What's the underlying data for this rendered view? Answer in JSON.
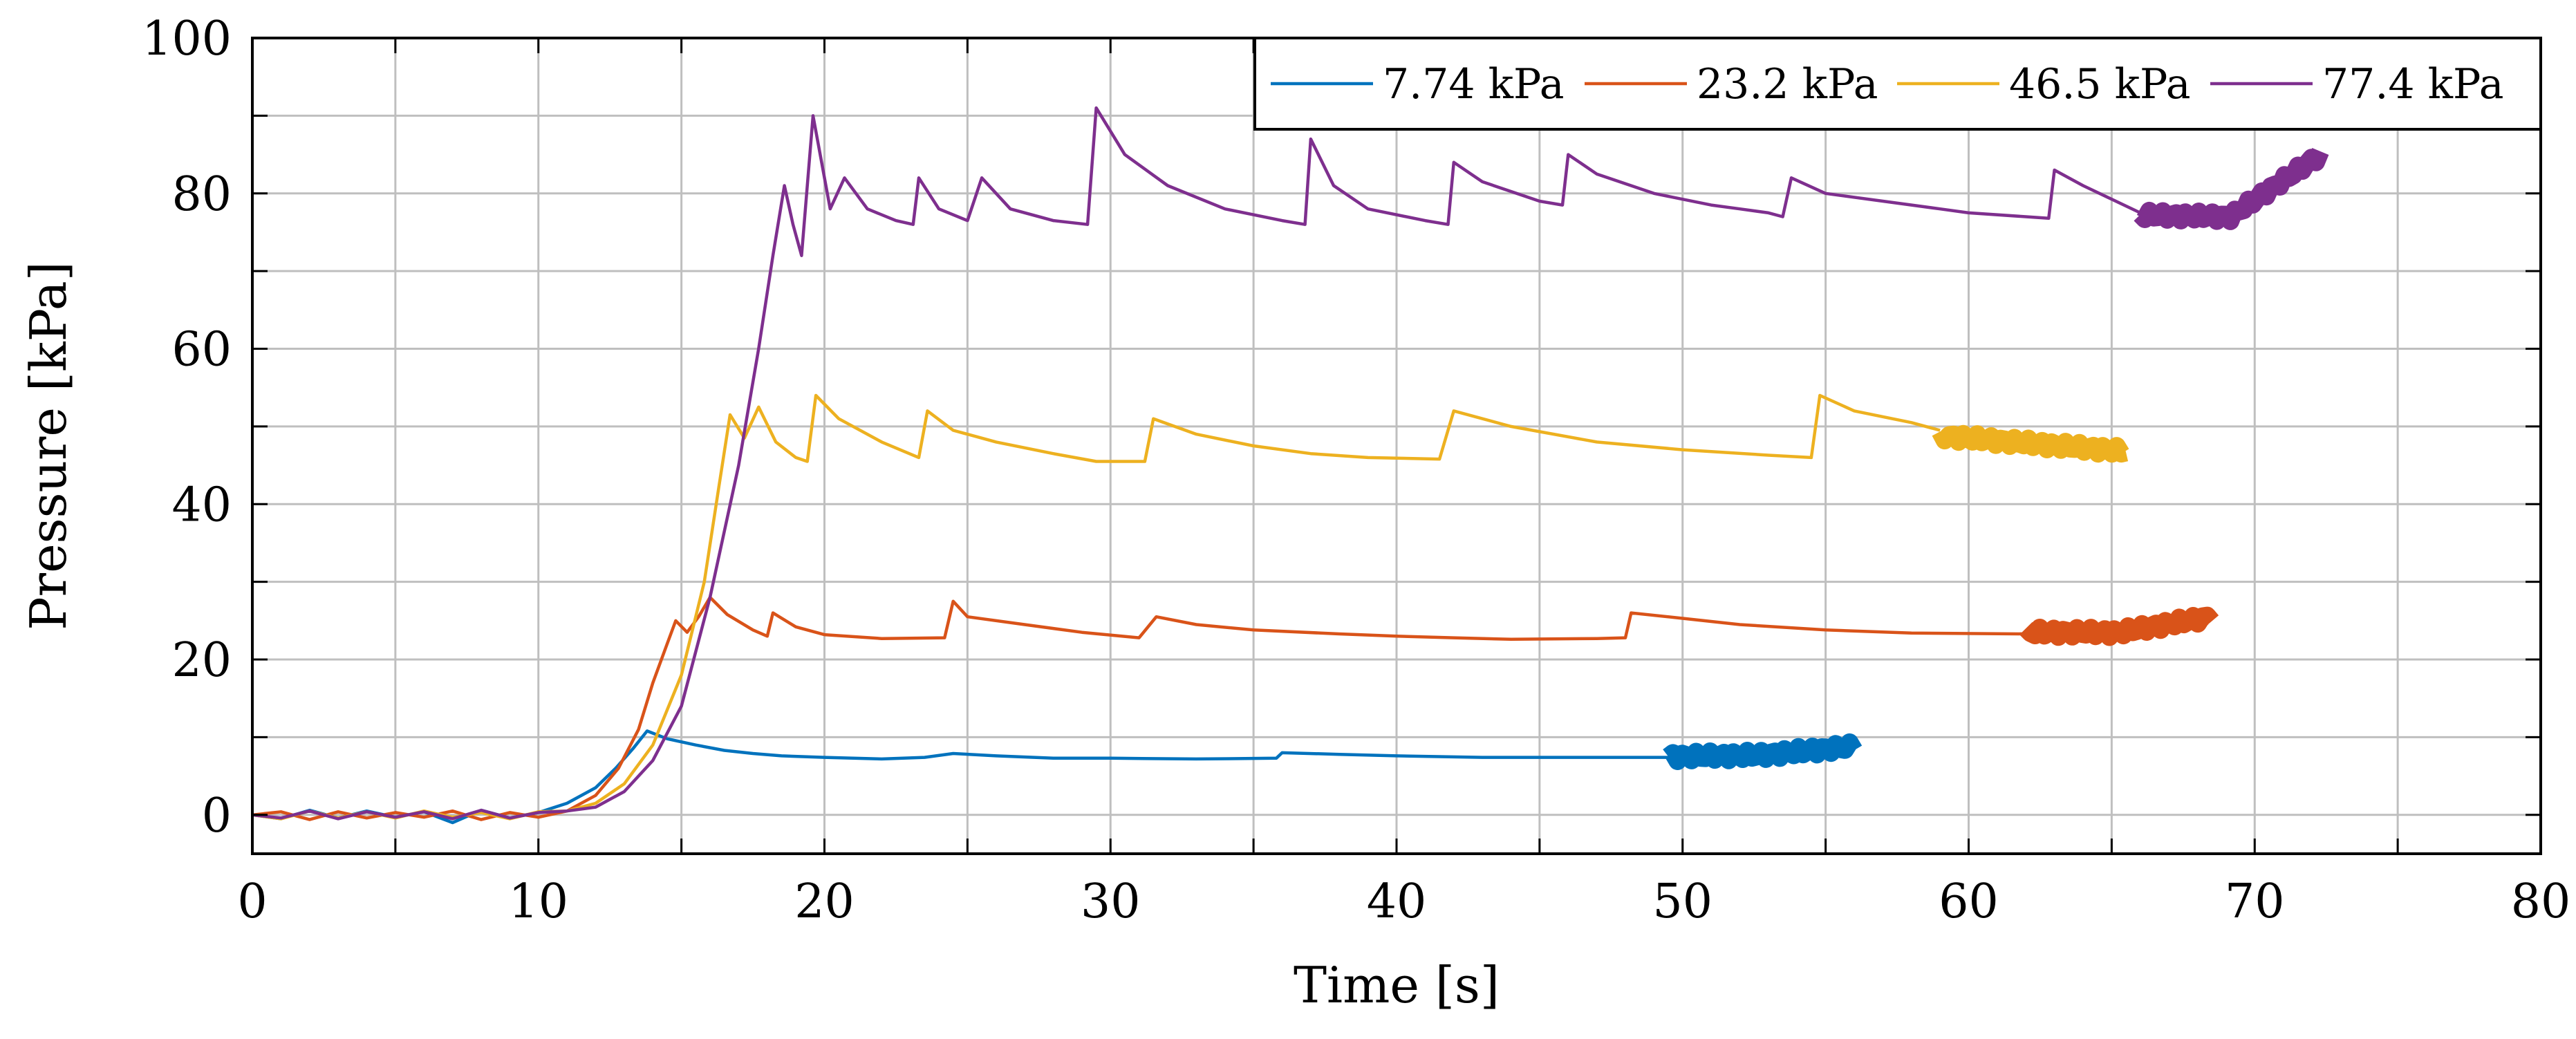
{
  "chart_data": {
    "type": "line",
    "title": "",
    "xlabel": "Time [s]",
    "ylabel": "Pressure [kPa]",
    "xlim": [
      0,
      80
    ],
    "ylim": [
      -5,
      100
    ],
    "xticks": [
      0,
      10,
      20,
      30,
      40,
      50,
      60,
      70,
      80
    ],
    "yticks": [
      0,
      20,
      40,
      60,
      80,
      100
    ],
    "xtick_labels": [
      "0",
      "10",
      "20",
      "30",
      "40",
      "50",
      "60",
      "70",
      "80"
    ],
    "ytick_labels": [
      "0",
      "20",
      "40",
      "60",
      "80",
      "100"
    ],
    "minor_xticks": [
      5,
      15,
      25,
      35,
      45,
      55,
      65,
      75
    ],
    "minor_yticks": [
      10,
      30,
      50,
      70,
      90
    ],
    "grid": true,
    "legend_position": "top-right",
    "series": [
      {
        "name": "7.74 kPa",
        "color": "#0072bd",
        "points": [
          [
            0,
            0
          ],
          [
            1,
            -0.5
          ],
          [
            2,
            0.6
          ],
          [
            3,
            -0.4
          ],
          [
            4,
            0.5
          ],
          [
            5,
            -0.3
          ],
          [
            6,
            0.4
          ],
          [
            7,
            -1
          ],
          [
            8,
            0.6
          ],
          [
            9,
            -0.4
          ],
          [
            10,
            0.3
          ],
          [
            11,
            1.5
          ],
          [
            12,
            3.5
          ],
          [
            12.7,
            6
          ],
          [
            13.3,
            8.5
          ],
          [
            13.8,
            10.8
          ],
          [
            14.5,
            9.8
          ],
          [
            15.5,
            9.0
          ],
          [
            16.5,
            8.3
          ],
          [
            17.5,
            7.9
          ],
          [
            18.5,
            7.6
          ],
          [
            20,
            7.4
          ],
          [
            22,
            7.2
          ],
          [
            23.5,
            7.4
          ],
          [
            24.5,
            7.9
          ],
          [
            26,
            7.6
          ],
          [
            28,
            7.3
          ],
          [
            30,
            7.3
          ],
          [
            33,
            7.2
          ],
          [
            35.8,
            7.3
          ],
          [
            36,
            8.0
          ],
          [
            38,
            7.8
          ],
          [
            40,
            7.6
          ],
          [
            43,
            7.4
          ],
          [
            46,
            7.4
          ],
          [
            49.5,
            7.4
          ]
        ],
        "thick": {
          "x_start": 49.5,
          "x_end": 56.0,
          "y_start": 7.5,
          "y_mid": 7.7,
          "y_end": 8.8,
          "stroke_level": 26
        }
      },
      {
        "name": "23.2 kPa",
        "color": "#d95319",
        "points": [
          [
            0,
            0
          ],
          [
            1,
            0.4
          ],
          [
            2,
            -0.6
          ],
          [
            3,
            0.4
          ],
          [
            4,
            -0.4
          ],
          [
            5,
            0.3
          ],
          [
            6,
            -0.3
          ],
          [
            7,
            0.5
          ],
          [
            8,
            -0.6
          ],
          [
            9,
            0.3
          ],
          [
            10,
            -0.3
          ],
          [
            11,
            0.5
          ],
          [
            12,
            2.5
          ],
          [
            12.8,
            6
          ],
          [
            13.5,
            11
          ],
          [
            14,
            17
          ],
          [
            14.5,
            22
          ],
          [
            14.8,
            25.0
          ],
          [
            15.2,
            23.5
          ],
          [
            15.6,
            25.5
          ],
          [
            16.0,
            28.0
          ],
          [
            16.6,
            25.8
          ],
          [
            17.5,
            23.8
          ],
          [
            18.0,
            23.0
          ],
          [
            18.2,
            26.0
          ],
          [
            19,
            24.2
          ],
          [
            20,
            23.2
          ],
          [
            22,
            22.7
          ],
          [
            24.2,
            22.8
          ],
          [
            24.5,
            27.5
          ],
          [
            25,
            25.5
          ],
          [
            27,
            24.5
          ],
          [
            29,
            23.5
          ],
          [
            31,
            22.8
          ],
          [
            31.6,
            25.5
          ],
          [
            33,
            24.5
          ],
          [
            35,
            23.8
          ],
          [
            38,
            23.3
          ],
          [
            40,
            23.0
          ],
          [
            42,
            22.8
          ],
          [
            44,
            22.6
          ],
          [
            47,
            22.7
          ],
          [
            48,
            22.8
          ],
          [
            48.2,
            26.0
          ],
          [
            50,
            25.3
          ],
          [
            52,
            24.5
          ],
          [
            55,
            23.8
          ],
          [
            58,
            23.4
          ],
          [
            62,
            23.3
          ]
        ],
        "thick": {
          "x_start": 62.0,
          "x_end": 68.5,
          "y_start": 23.5,
          "y_mid": 23.5,
          "y_end": 25.5,
          "stroke_level": 26
        }
      },
      {
        "name": "46.5 kPa",
        "color": "#edb120",
        "points": [
          [
            0,
            0
          ],
          [
            1,
            -0.5
          ],
          [
            2,
            0.5
          ],
          [
            3,
            -0.4
          ],
          [
            4,
            0.4
          ],
          [
            5,
            -0.4
          ],
          [
            6,
            0.5
          ],
          [
            7,
            -0.3
          ],
          [
            8,
            0.3
          ],
          [
            9,
            -0.5
          ],
          [
            10,
            0.4
          ],
          [
            11,
            0.5
          ],
          [
            12,
            1.5
          ],
          [
            13,
            4
          ],
          [
            14,
            9
          ],
          [
            15,
            18
          ],
          [
            15.8,
            30
          ],
          [
            16.3,
            42
          ],
          [
            16.7,
            51.5
          ],
          [
            17.2,
            48.5
          ],
          [
            17.7,
            52.5
          ],
          [
            18.3,
            48
          ],
          [
            19.0,
            46.0
          ],
          [
            19.4,
            45.5
          ],
          [
            19.7,
            54.0
          ],
          [
            20.5,
            51
          ],
          [
            22,
            48
          ],
          [
            23.3,
            46.0
          ],
          [
            23.6,
            52.0
          ],
          [
            24.5,
            49.5
          ],
          [
            26,
            48
          ],
          [
            28,
            46.5
          ],
          [
            29.5,
            45.5
          ],
          [
            31.2,
            45.5
          ],
          [
            31.5,
            51.0
          ],
          [
            33,
            49.0
          ],
          [
            35,
            47.5
          ],
          [
            37,
            46.5
          ],
          [
            39,
            46.0
          ],
          [
            41.5,
            45.8
          ],
          [
            42.0,
            52.0
          ],
          [
            44,
            50.0
          ],
          [
            47,
            48.0
          ],
          [
            50,
            47.0
          ],
          [
            53,
            46.3
          ],
          [
            54.5,
            46.0
          ],
          [
            54.8,
            54.0
          ],
          [
            56,
            52.0
          ],
          [
            58,
            50.5
          ],
          [
            59,
            49.5
          ]
        ],
        "thick": {
          "x_start": 59.0,
          "x_end": 65.5,
          "y_start": 48.8,
          "y_mid": 47.8,
          "y_end": 46.8,
          "stroke_level": 26
        }
      },
      {
        "name": "77.4 kPa",
        "color": "#7e2f8e",
        "points": [
          [
            0,
            0
          ],
          [
            1,
            -0.4
          ],
          [
            2,
            0.5
          ],
          [
            3,
            -0.5
          ],
          [
            4,
            0.4
          ],
          [
            5,
            -0.3
          ],
          [
            6,
            0.4
          ],
          [
            7,
            -0.5
          ],
          [
            8,
            0.6
          ],
          [
            9,
            -0.4
          ],
          [
            10,
            0.3
          ],
          [
            11,
            0.5
          ],
          [
            12,
            1
          ],
          [
            13,
            3
          ],
          [
            14,
            7
          ],
          [
            15,
            14
          ],
          [
            16,
            28
          ],
          [
            17,
            45
          ],
          [
            17.7,
            60
          ],
          [
            18.2,
            72
          ],
          [
            18.6,
            81
          ],
          [
            18.9,
            76
          ],
          [
            19.2,
            72
          ],
          [
            19.6,
            90
          ],
          [
            20.2,
            78
          ],
          [
            20.7,
            82
          ],
          [
            21.5,
            78
          ],
          [
            22.5,
            76.5
          ],
          [
            23.1,
            76.0
          ],
          [
            23.3,
            82.0
          ],
          [
            24,
            78
          ],
          [
            25,
            76.5
          ],
          [
            25.5,
            82.0
          ],
          [
            26.5,
            78
          ],
          [
            28,
            76.5
          ],
          [
            29.2,
            76.0
          ],
          [
            29.5,
            91.0
          ],
          [
            30.5,
            85
          ],
          [
            32,
            81
          ],
          [
            34,
            78
          ],
          [
            36,
            76.5
          ],
          [
            36.8,
            76.0
          ],
          [
            37.0,
            87.0
          ],
          [
            37.8,
            81
          ],
          [
            39,
            78
          ],
          [
            41,
            76.5
          ],
          [
            41.8,
            76.0
          ],
          [
            42.0,
            84.0
          ],
          [
            43,
            81.5
          ],
          [
            45,
            79
          ],
          [
            45.8,
            78.5
          ],
          [
            46.0,
            85.0
          ],
          [
            47,
            82.5
          ],
          [
            49,
            80
          ],
          [
            51,
            78.5
          ],
          [
            52,
            78.0
          ],
          [
            53,
            77.5
          ],
          [
            53.5,
            77.0
          ],
          [
            53.8,
            82.0
          ],
          [
            55,
            80
          ],
          [
            57,
            79
          ],
          [
            59,
            78
          ],
          [
            60,
            77.5
          ],
          [
            62,
            77.0
          ],
          [
            62.8,
            76.8
          ],
          [
            63.0,
            83.0
          ],
          [
            64,
            81
          ],
          [
            66,
            77.5
          ]
        ],
        "thick": {
          "x_start": 66.0,
          "x_end": 72.3,
          "y_start": 77.2,
          "y_mid": 77.0,
          "y_end": 85.0,
          "stroke_level": 26
        }
      }
    ]
  }
}
